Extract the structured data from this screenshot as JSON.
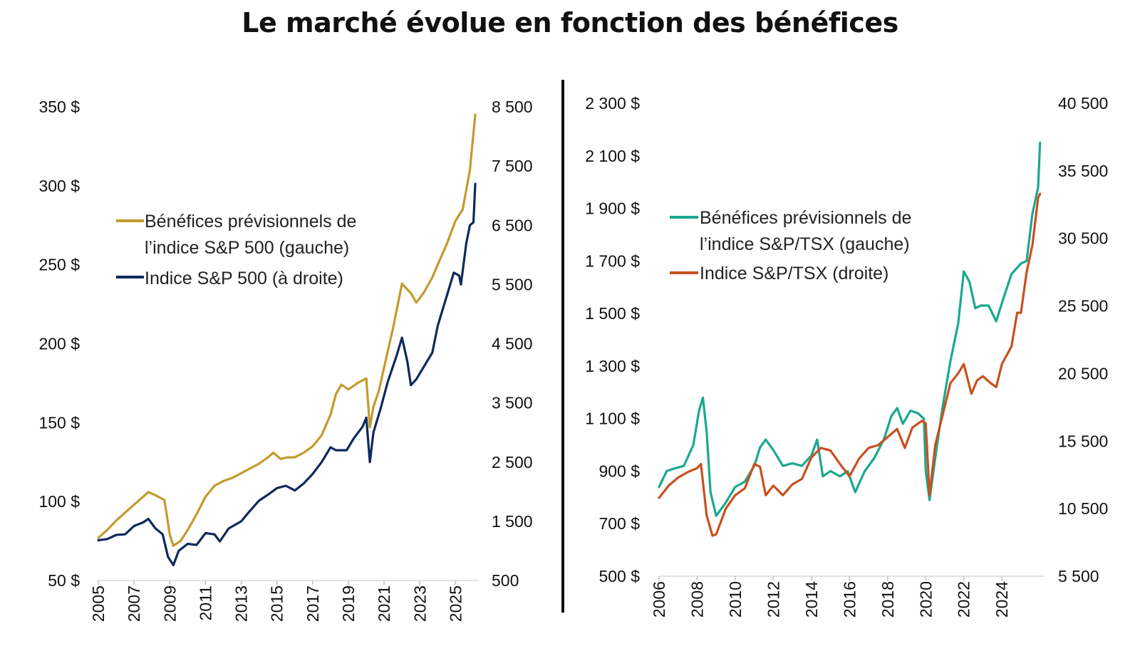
{
  "title": "Le marché évolue en fonction des bénéfices",
  "chart_data": [
    {
      "type": "line",
      "left_y_ticks": [
        "50 $",
        "100 $",
        "150 $",
        "200 $",
        "250 $",
        "300 $",
        "350 $"
      ],
      "right_y_ticks": [
        "500",
        "1 500",
        "2 500",
        "3 500",
        "4 500",
        "5 500",
        "6 500",
        "7 500",
        "8 500"
      ],
      "x_ticks": [
        "2005",
        "2007",
        "2009",
        "2011",
        "2013",
        "2015",
        "2017",
        "2019",
        "2021",
        "2023",
        "2025"
      ],
      "left_ylim": [
        50,
        350
      ],
      "right_ylim": [
        500,
        8500
      ],
      "xlim": [
        2005,
        2026.3
      ],
      "legend_position": "upper-left",
      "series": [
        {
          "name": "Bénéfices prévisionnels de l’indice S&P 500 (gauche)",
          "axis": "left",
          "color": "#c49a2e",
          "x": [
            2005.0,
            2005.5,
            2006.0,
            2006.5,
            2007.0,
            2007.5,
            2007.8,
            2008.2,
            2008.7,
            2009.0,
            2009.2,
            2009.6,
            2010.0,
            2010.5,
            2011.0,
            2011.5,
            2012.0,
            2012.5,
            2013.0,
            2013.5,
            2014.0,
            2014.5,
            2014.8,
            2015.2,
            2015.6,
            2016.0,
            2016.5,
            2017.0,
            2017.5,
            2018.0,
            2018.3,
            2018.6,
            2019.0,
            2019.5,
            2020.0,
            2020.2,
            2020.4,
            2020.7,
            2021.0,
            2021.5,
            2022.0,
            2022.5,
            2022.8,
            2023.2,
            2023.7,
            2024.0,
            2024.5,
            2025.0,
            2025.4,
            2025.8,
            2026.1
          ],
          "y": [
            77,
            82,
            88,
            93,
            98,
            103,
            106,
            104,
            101,
            79,
            72,
            75,
            82,
            92,
            103,
            110,
            113,
            115,
            118,
            121,
            124,
            128,
            131,
            127,
            128,
            128,
            131,
            135,
            142,
            155,
            168,
            174,
            171,
            175,
            178,
            147,
            160,
            170,
            185,
            210,
            238,
            232,
            226,
            232,
            242,
            250,
            263,
            278,
            285,
            310,
            345
          ]
        },
        {
          "name": "Indice S&P 500 (à droite)",
          "axis": "right",
          "color": "#0d2a5c",
          "x": [
            2005.0,
            2005.5,
            2006.0,
            2006.5,
            2007.0,
            2007.5,
            2007.8,
            2008.2,
            2008.6,
            2008.9,
            2009.2,
            2009.5,
            2010.0,
            2010.5,
            2011.0,
            2011.5,
            2011.8,
            2012.3,
            2013.0,
            2013.5,
            2014.0,
            2014.5,
            2015.0,
            2015.5,
            2016.0,
            2016.5,
            2017.0,
            2017.5,
            2018.0,
            2018.3,
            2018.9,
            2019.3,
            2019.8,
            2020.0,
            2020.2,
            2020.4,
            2020.8,
            2021.2,
            2021.7,
            2022.0,
            2022.3,
            2022.5,
            2022.8,
            2023.2,
            2023.7,
            2024.0,
            2024.5,
            2024.9,
            2025.2,
            2025.3,
            2025.6,
            2025.8,
            2026.0,
            2026.1
          ],
          "y": [
            1180,
            1200,
            1270,
            1280,
            1420,
            1480,
            1540,
            1380,
            1280,
            900,
            760,
            1000,
            1120,
            1100,
            1300,
            1280,
            1160,
            1380,
            1500,
            1680,
            1850,
            1950,
            2060,
            2100,
            2020,
            2140,
            2300,
            2500,
            2750,
            2700,
            2700,
            2900,
            3100,
            3250,
            2500,
            3000,
            3400,
            3850,
            4300,
            4600,
            4200,
            3800,
            3900,
            4100,
            4350,
            4800,
            5300,
            5700,
            5650,
            5500,
            6200,
            6500,
            6550,
            7200
          ]
        }
      ]
    },
    {
      "type": "line",
      "left_y_ticks": [
        "500 $",
        "700 $",
        "900 $",
        "1 100 $",
        "1 300 $",
        "1 500 $",
        "1 700 $",
        "1 900 $",
        "2 100 $",
        "2 300 $"
      ],
      "right_y_ticks": [
        "5 500",
        "10 500",
        "15 500",
        "20 500",
        "25 500",
        "30 500",
        "35 500",
        "40 500"
      ],
      "x_ticks": [
        "2006",
        "2008",
        "2010",
        "2012",
        "2014",
        "2016",
        "2018",
        "2020",
        "2022",
        "2024"
      ],
      "left_ylim": [
        500,
        2300
      ],
      "right_ylim": [
        5500,
        40500
      ],
      "xlim": [
        2006,
        2026.2
      ],
      "legend_position": "upper-left",
      "series": [
        {
          "name": "Bénéfices prévisionnels de l’indice S&P/TSX (gauche)",
          "axis": "left",
          "color": "#1ba88e",
          "x": [
            2006.0,
            2006.4,
            2006.8,
            2007.3,
            2007.8,
            2008.1,
            2008.3,
            2008.5,
            2008.7,
            2009.0,
            2009.5,
            2010.0,
            2010.5,
            2011.0,
            2011.3,
            2011.6,
            2012.0,
            2012.5,
            2013.0,
            2013.5,
            2014.0,
            2014.3,
            2014.6,
            2015.0,
            2015.5,
            2015.9,
            2016.3,
            2016.8,
            2017.3,
            2017.8,
            2018.2,
            2018.5,
            2018.8,
            2019.2,
            2019.6,
            2019.9,
            2020.0,
            2020.2,
            2020.5,
            2020.9,
            2021.3,
            2021.7,
            2022.0,
            2022.3,
            2022.6,
            2022.9,
            2023.3,
            2023.7,
            2024.0,
            2024.5,
            2025.0,
            2025.3,
            2025.6,
            2025.9,
            2026.0
          ],
          "y": [
            840,
            900,
            910,
            920,
            1000,
            1130,
            1180,
            1050,
            820,
            730,
            780,
            840,
            860,
            920,
            990,
            1020,
            980,
            920,
            930,
            920,
            960,
            1020,
            880,
            900,
            880,
            900,
            820,
            900,
            950,
            1020,
            1110,
            1140,
            1080,
            1130,
            1120,
            1100,
            900,
            790,
            950,
            1150,
            1320,
            1460,
            1660,
            1620,
            1520,
            1530,
            1530,
            1470,
            1540,
            1650,
            1690,
            1700,
            1880,
            1980,
            2150
          ]
        },
        {
          "name": "Indice S&P/TSX (droite)",
          "axis": "right",
          "color": "#c8501e",
          "x": [
            2006.0,
            2006.5,
            2007.0,
            2007.5,
            2008.0,
            2008.2,
            2008.5,
            2008.8,
            2009.0,
            2009.5,
            2010.0,
            2010.5,
            2011.0,
            2011.3,
            2011.6,
            2012.0,
            2012.5,
            2013.0,
            2013.5,
            2014.0,
            2014.5,
            2015.0,
            2015.5,
            2016.0,
            2016.5,
            2017.0,
            2017.5,
            2018.0,
            2018.5,
            2018.9,
            2019.3,
            2019.8,
            2020.0,
            2020.2,
            2020.5,
            2020.9,
            2021.3,
            2021.7,
            2022.0,
            2022.4,
            2022.7,
            2023.0,
            2023.4,
            2023.7,
            2024.0,
            2024.5,
            2024.8,
            2025.0,
            2025.3,
            2025.6,
            2025.9,
            2026.0
          ],
          "y": [
            11300,
            12200,
            12800,
            13200,
            13500,
            13800,
            10000,
            8500,
            8600,
            10500,
            11500,
            12000,
            13800,
            13600,
            11500,
            12200,
            11500,
            12300,
            12700,
            14300,
            15000,
            14800,
            13800,
            12900,
            14200,
            15000,
            15200,
            15800,
            16400,
            15000,
            16500,
            17000,
            16800,
            11500,
            15200,
            17500,
            19800,
            20500,
            21200,
            19000,
            20000,
            20300,
            19800,
            19500,
            21200,
            22500,
            25000,
            25000,
            28000,
            30000,
            33500,
            33800
          ]
        }
      ]
    }
  ]
}
